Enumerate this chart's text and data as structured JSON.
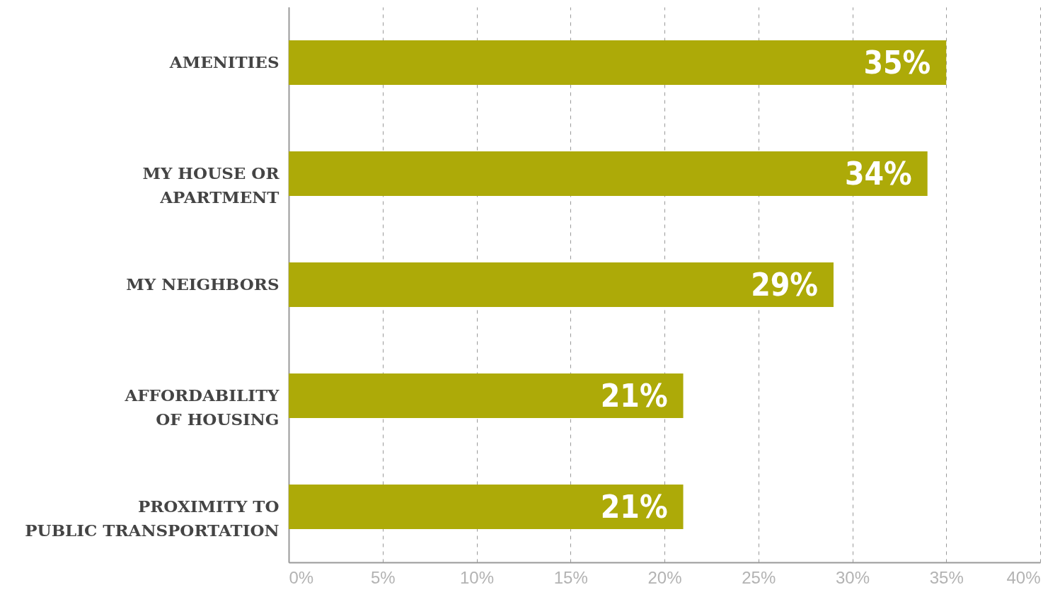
{
  "chart_data": {
    "type": "bar",
    "orientation": "horizontal",
    "categories": [
      "AMENITIES",
      "MY HOUSE OR\nAPARTMENT",
      "MY NEIGHBORS",
      "AFFORDABILITY\nOF HOUSING",
      "PROXIMITY TO\nPUBLIC TRANSPORTATION"
    ],
    "values": [
      35,
      34,
      29,
      21,
      21
    ],
    "value_labels": [
      "35%",
      "34%",
      "29%",
      "21%",
      "21%"
    ],
    "color": "#adaa08",
    "xlim": [
      0,
      40
    ],
    "xticks": [
      {
        "value": 0,
        "label": "0%"
      },
      {
        "value": 5,
        "label": "5%"
      },
      {
        "value": 10,
        "label": "10%"
      },
      {
        "value": 15,
        "label": "15%"
      },
      {
        "value": 20,
        "label": "20%"
      },
      {
        "value": 25,
        "label": "25%"
      },
      {
        "value": 30,
        "label": "30%"
      },
      {
        "value": 35,
        "label": "35%"
      },
      {
        "value": 40,
        "label": "40%"
      }
    ],
    "grid": "x"
  }
}
